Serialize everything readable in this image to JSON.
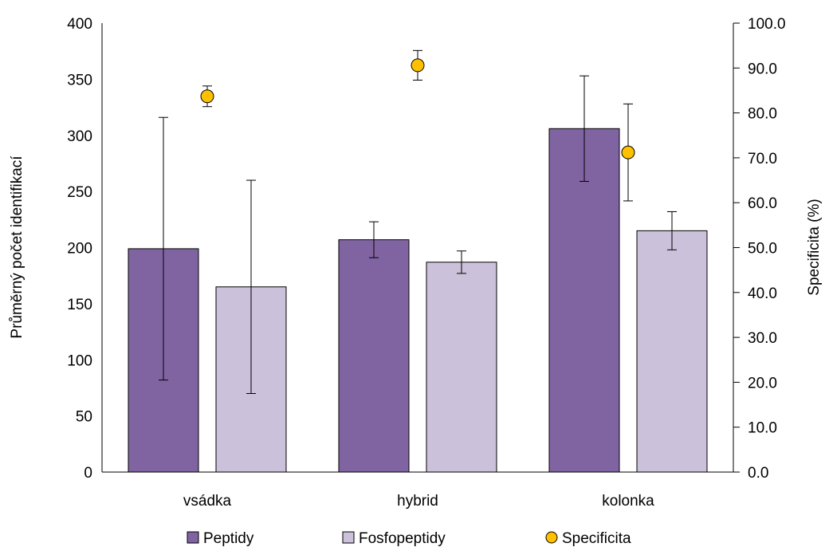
{
  "chart_data": {
    "type": "bar",
    "categories": [
      "vsádka",
      "hybrid",
      "kolonka"
    ],
    "series": [
      {
        "name": "Peptidy",
        "values": [
          199,
          207,
          306
        ],
        "errors": [
          117,
          16,
          47
        ],
        "color": "#8064a2"
      },
      {
        "name": "Fosfopeptidy",
        "values": [
          165,
          187,
          215
        ],
        "errors": [
          95,
          10,
          17
        ],
        "color": "#ccc1da"
      },
      {
        "name": "Specificita",
        "values": [
          83.7,
          90.6,
          71.2
        ],
        "errors": [
          2.3,
          3.3,
          10.8
        ],
        "color": "#ffc000",
        "axis": "right"
      }
    ],
    "ylabel": "Průměrný počet identifikací",
    "y2label": "Specificita (%)",
    "ylim": [
      0,
      400
    ],
    "y2lim": [
      0,
      100
    ],
    "yticks": [
      "0",
      "50",
      "100",
      "150",
      "200",
      "250",
      "300",
      "350",
      "400"
    ],
    "y2ticks": [
      "0.0",
      "10.0",
      "20.0",
      "30.0",
      "40.0",
      "50.0",
      "60.0",
      "70.0",
      "80.0",
      "90.0",
      "100.0"
    ],
    "legend_position": "bottom",
    "grid": false
  }
}
